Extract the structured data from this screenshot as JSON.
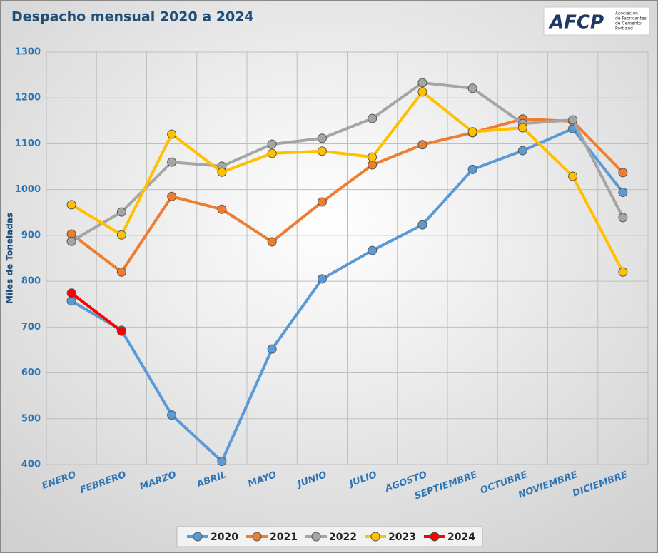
{
  "chart_data": {
    "type": "line",
    "title": "Despacho mensual 2020 a 2024",
    "logo": {
      "name": "AFCP",
      "tagline": [
        "Asociación",
        "de Fabricantes",
        "de Cemento",
        "Portland"
      ]
    },
    "ylabel": "Miles de Toneladas",
    "categories": [
      "ENERO",
      "FEBRERO",
      "MARZO",
      "ABRIL",
      "MAYO",
      "JUNIO",
      "JULIO",
      "AGOSTO",
      "SEPTIEMBRE",
      "OCTUBRE",
      "NOVIEMBRE",
      "DICIEMBRE"
    ],
    "series": [
      {
        "name": "2020",
        "color": "#5b9bd5",
        "values": [
          757,
          693,
          508,
          407,
          652,
          805,
          867,
          923,
          1044,
          1085,
          1133,
          994
        ]
      },
      {
        "name": "2021",
        "color": "#ed7d31",
        "values": [
          903,
          820,
          985,
          957,
          886,
          973,
          1054,
          1098,
          1124,
          1154,
          1149,
          1037
        ]
      },
      {
        "name": "2022",
        "color": "#a5a5a5",
        "values": [
          887,
          951,
          1060,
          1051,
          1099,
          1112,
          1155,
          1233,
          1221,
          1144,
          1152,
          939
        ]
      },
      {
        "name": "2023",
        "color": "#ffc000",
        "values": [
          967,
          901,
          1121,
          1038,
          1079,
          1084,
          1071,
          1213,
          1126,
          1135,
          1029,
          820
        ]
      },
      {
        "name": "2024",
        "color": "#ff0000",
        "values": [
          774,
          691,
          null,
          null,
          null,
          null,
          null,
          null,
          null,
          null,
          null,
          null
        ]
      }
    ],
    "ylim": [
      400,
      1300
    ],
    "yticks": [
      400,
      500,
      600,
      700,
      800,
      900,
      1000,
      1100,
      1200,
      1300
    ],
    "grid": true,
    "legend": "bottom"
  }
}
